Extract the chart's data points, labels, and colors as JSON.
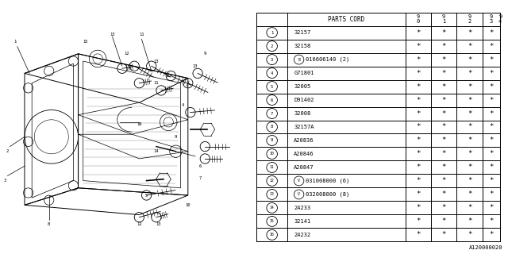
{
  "watermark": "A120000020",
  "rows": [
    {
      "num": "1",
      "code": "32157",
      "special": null,
      "stars": [
        true,
        true,
        true,
        true,
        false
      ]
    },
    {
      "num": "2",
      "code": "32158",
      "special": null,
      "stars": [
        true,
        true,
        true,
        true,
        false
      ]
    },
    {
      "num": "3",
      "code": "016606140 (2)",
      "special": "B",
      "stars": [
        true,
        true,
        true,
        true,
        false
      ]
    },
    {
      "num": "4",
      "code": "G71801",
      "special": null,
      "stars": [
        true,
        true,
        true,
        true,
        false
      ]
    },
    {
      "num": "5",
      "code": "32005",
      "special": null,
      "stars": [
        true,
        true,
        true,
        true,
        false
      ]
    },
    {
      "num": "6",
      "code": "D91402",
      "special": null,
      "stars": [
        true,
        true,
        true,
        true,
        false
      ]
    },
    {
      "num": "7",
      "code": "32008",
      "special": null,
      "stars": [
        true,
        true,
        true,
        true,
        false
      ]
    },
    {
      "num": "8",
      "code": "32157A",
      "special": null,
      "stars": [
        true,
        true,
        true,
        true,
        false
      ]
    },
    {
      "num": "9",
      "code": "A20836",
      "special": null,
      "stars": [
        true,
        true,
        true,
        true,
        false
      ]
    },
    {
      "num": "10",
      "code": "A20846",
      "special": null,
      "stars": [
        true,
        true,
        true,
        true,
        false
      ]
    },
    {
      "num": "11",
      "code": "A20847",
      "special": null,
      "stars": [
        true,
        true,
        true,
        true,
        false
      ]
    },
    {
      "num": "12",
      "code": "031008000 (6)",
      "special": "V",
      "stars": [
        true,
        true,
        true,
        true,
        false
      ]
    },
    {
      "num": "13",
      "code": "032008000 (8)",
      "special": "V",
      "stars": [
        true,
        true,
        true,
        true,
        false
      ]
    },
    {
      "num": "14",
      "code": "24233",
      "special": null,
      "stars": [
        true,
        true,
        true,
        true,
        false
      ]
    },
    {
      "num": "15",
      "code": "32141",
      "special": null,
      "stars": [
        true,
        true,
        true,
        true,
        false
      ]
    },
    {
      "num": "16",
      "code": "24232",
      "special": null,
      "stars": [
        true,
        true,
        true,
        true,
        false
      ]
    }
  ],
  "bg_color": "#ffffff",
  "line_color": "#000000",
  "year_cols": [
    "9\n0",
    "9\n1",
    "9\n2",
    "9\n3",
    "9\n4"
  ]
}
